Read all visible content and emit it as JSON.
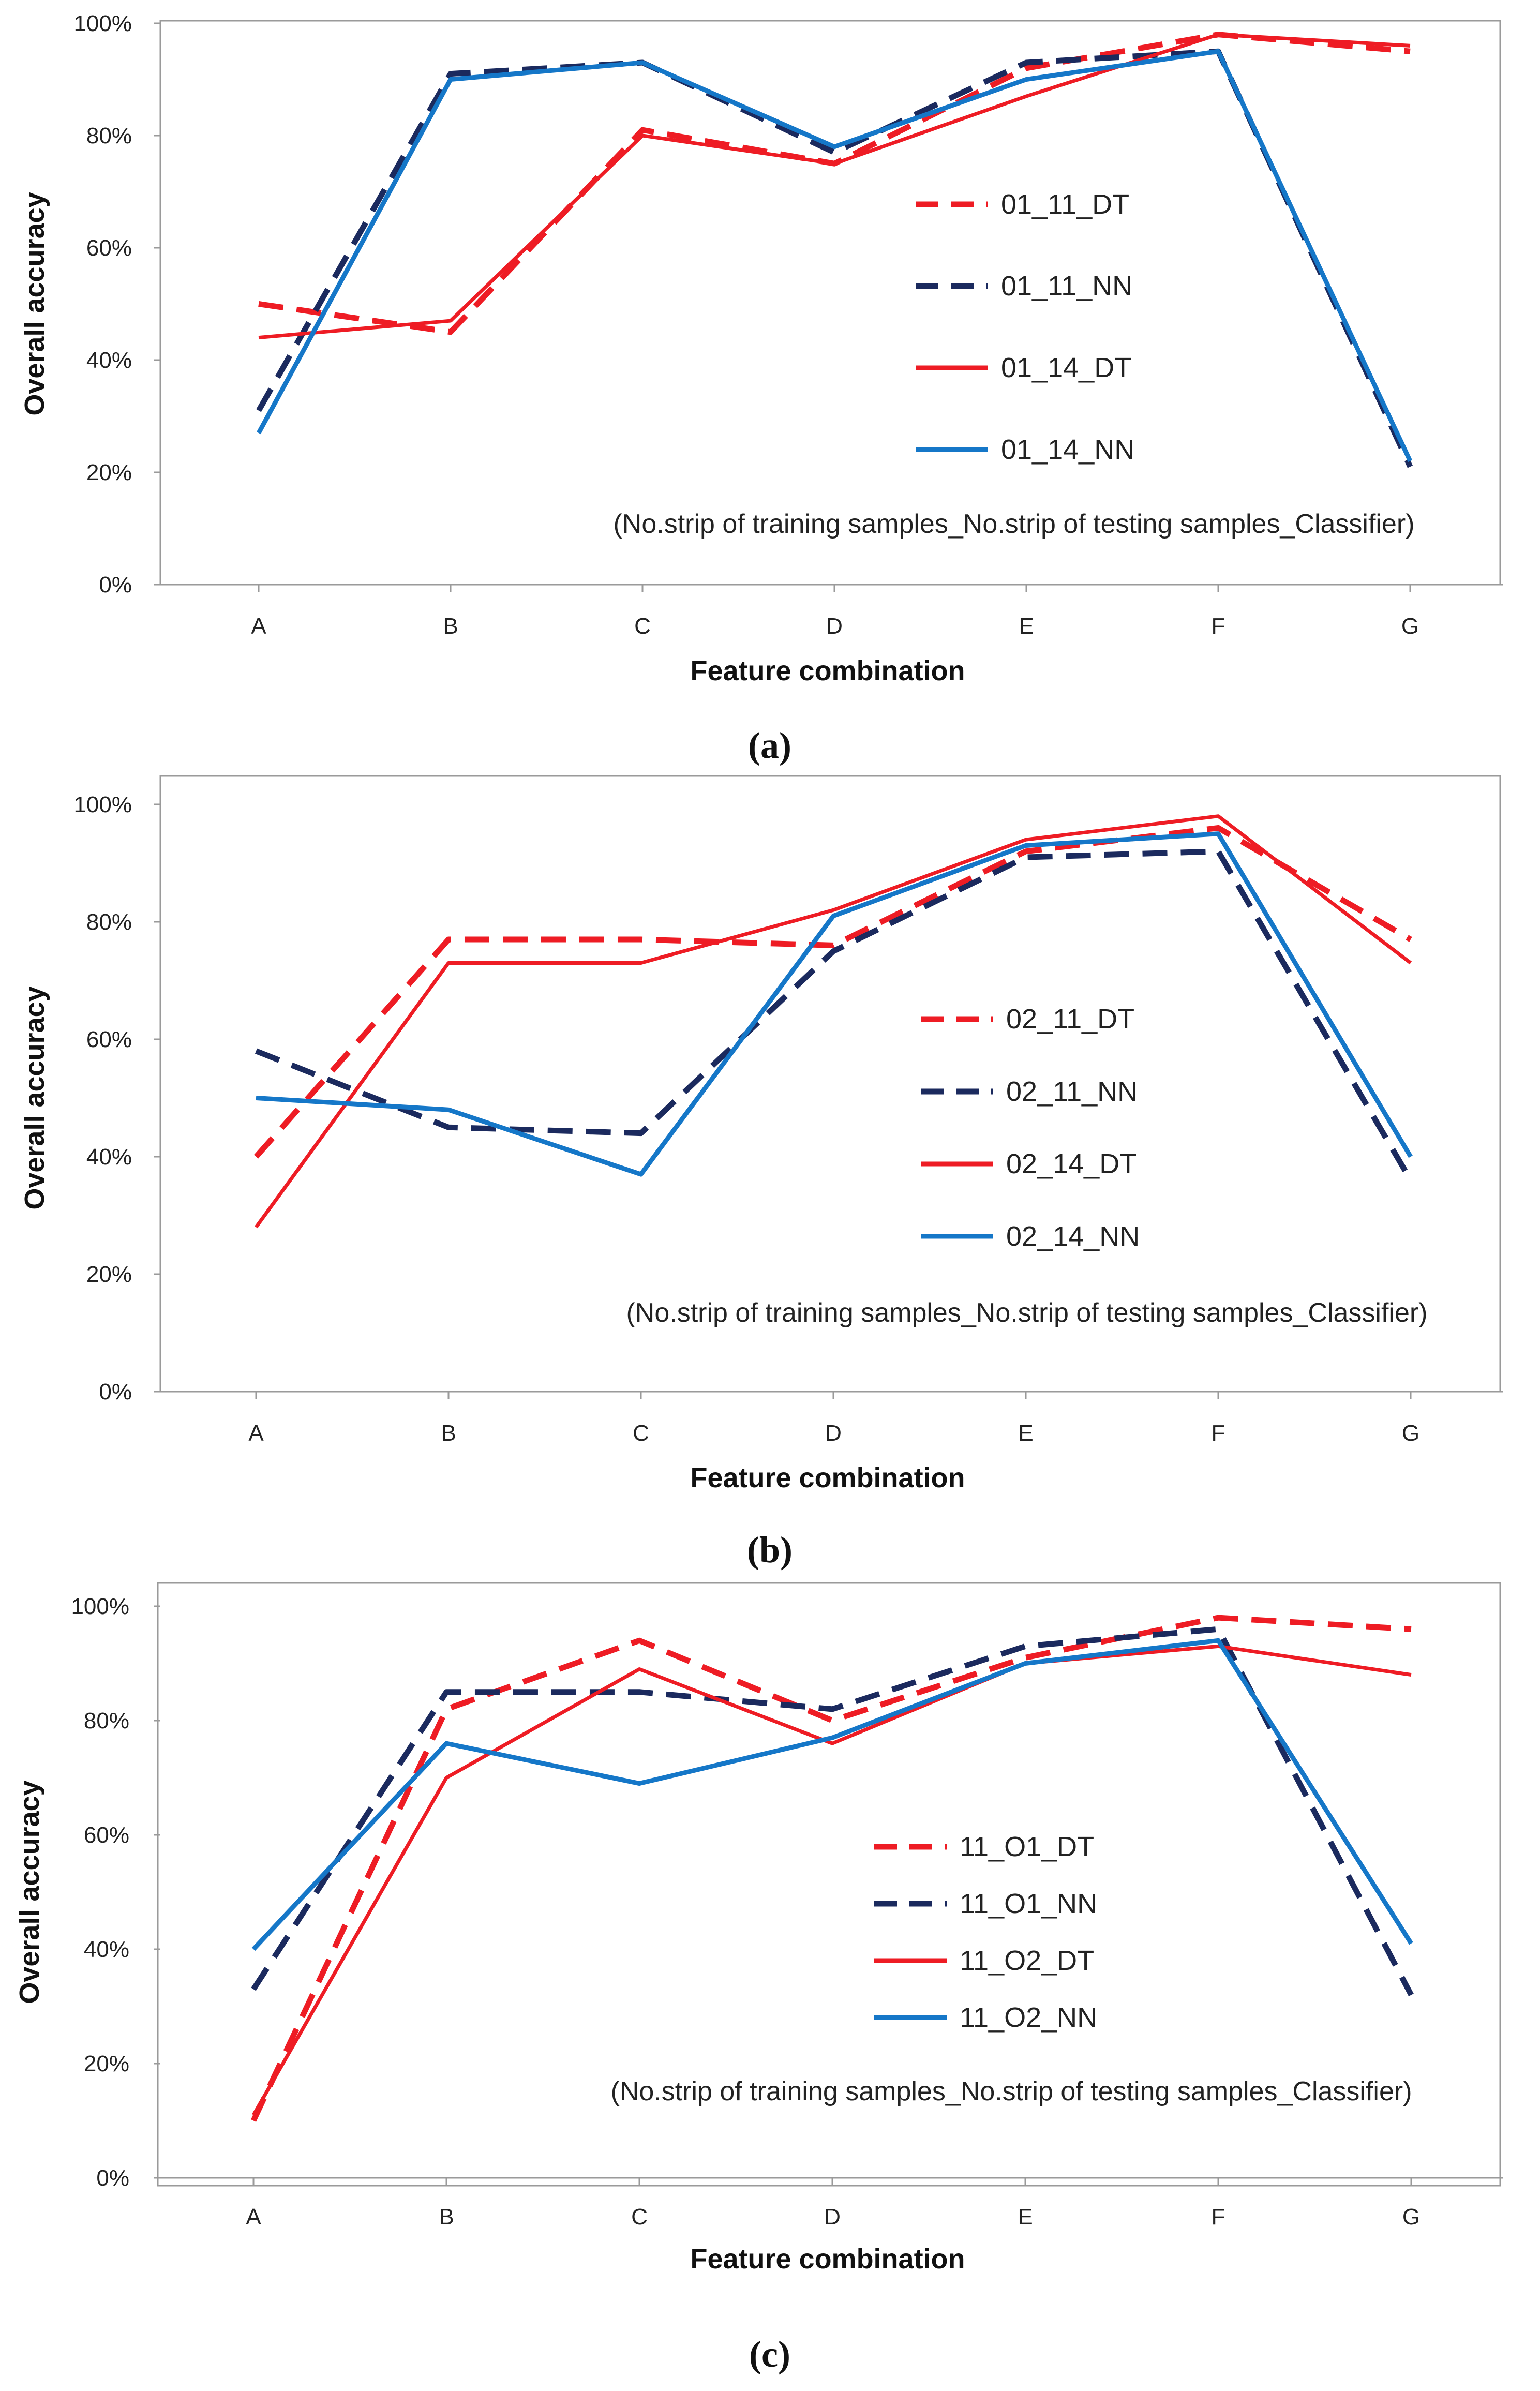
{
  "figure": {
    "colors": {
      "red": "#ee1c24",
      "navy": "#1b2a5e",
      "blue": "#1577c8",
      "frame": "#9a9a9a",
      "grid": "#e0e0e0"
    }
  },
  "chart_data": [
    {
      "type": "line",
      "panel_label": "a",
      "xlabel": "Feature combination",
      "ylabel": "Overall accuracy",
      "categories": [
        "A",
        "B",
        "C",
        "D",
        "E",
        "F",
        "G"
      ],
      "ylim": [
        0,
        100
      ],
      "yticks": [
        "0%",
        "20%",
        "40%",
        "60%",
        "80%",
        "100%"
      ],
      "note": "(No.strip of training samples_No.strip of testing samples_Classifier)",
      "legend_position": "center-right",
      "series": [
        {
          "name": "01_11_DT",
          "color": "#ee1c24",
          "dashed": true,
          "values": [
            50,
            45,
            81,
            75,
            92,
            98,
            95
          ]
        },
        {
          "name": "01_11_NN",
          "color": "#1b2a5e",
          "dashed": true,
          "values": [
            31,
            91,
            93,
            77,
            93,
            95,
            21
          ]
        },
        {
          "name": "01_14_DT",
          "color": "#ee1c24",
          "dashed": false,
          "values": [
            44,
            47,
            80,
            75,
            87,
            98,
            96
          ]
        },
        {
          "name": "01_14_NN",
          "color": "#1577c8",
          "dashed": false,
          "values": [
            27,
            90,
            93,
            78,
            90,
            95,
            22
          ]
        }
      ]
    },
    {
      "type": "line",
      "panel_label": "b",
      "xlabel": "Feature combination",
      "ylabel": "Overall accuracy",
      "categories": [
        "A",
        "B",
        "C",
        "D",
        "E",
        "F",
        "G"
      ],
      "ylim": [
        0,
        100
      ],
      "yticks": [
        "0%",
        "20%",
        "40%",
        "60%",
        "80%",
        "100%"
      ],
      "note": "(No.strip of training samples_No.strip of testing samples_Classifier)",
      "legend_position": "center-right",
      "series": [
        {
          "name": "02_11_DT",
          "color": "#ee1c24",
          "dashed": true,
          "values": [
            40,
            77,
            77,
            76,
            92,
            96,
            77
          ]
        },
        {
          "name": "02_11_NN",
          "color": "#1b2a5e",
          "dashed": true,
          "values": [
            58,
            45,
            44,
            75,
            91,
            92,
            36
          ]
        },
        {
          "name": "02_14_DT",
          "color": "#ee1c24",
          "dashed": false,
          "values": [
            28,
            73,
            73,
            82,
            94,
            98,
            73
          ]
        },
        {
          "name": "02_14_NN",
          "color": "#1577c8",
          "dashed": false,
          "values": [
            50,
            48,
            37,
            81,
            93,
            95,
            40
          ]
        }
      ]
    },
    {
      "type": "line",
      "panel_label": "c",
      "xlabel": "Feature combination",
      "ylabel": "Overall accuracy",
      "categories": [
        "A",
        "B",
        "C",
        "D",
        "E",
        "F",
        "G"
      ],
      "ylim": [
        0,
        100
      ],
      "yticks": [
        "0%",
        "20%",
        "40%",
        "60%",
        "80%",
        "100%"
      ],
      "note": "(No.strip of training samples_No.strip of testing samples_Classifier)",
      "legend_position": "center-right",
      "series": [
        {
          "name": "11_O1_DT",
          "color": "#ee1c24",
          "dashed": true,
          "values": [
            10,
            82,
            94,
            80,
            91,
            98,
            96
          ]
        },
        {
          "name": "11_O1_NN",
          "color": "#1b2a5e",
          "dashed": true,
          "values": [
            33,
            85,
            85,
            82,
            93,
            96,
            32
          ]
        },
        {
          "name": "11_O2_DT",
          "color": "#ee1c24",
          "dashed": false,
          "values": [
            11,
            70,
            89,
            76,
            90,
            93,
            88
          ]
        },
        {
          "name": "11_O2_NN",
          "color": "#1577c8",
          "dashed": false,
          "values": [
            40,
            76,
            69,
            77,
            90,
            94,
            41
          ]
        }
      ]
    }
  ]
}
